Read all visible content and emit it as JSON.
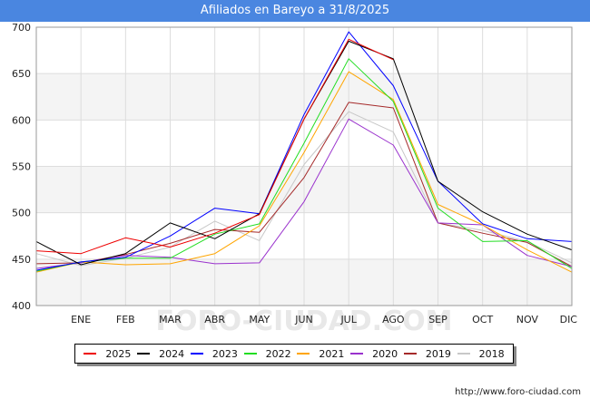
{
  "chart_data": {
    "type": "line",
    "title": "Afiliados en Bareyo a 31/8/2025",
    "categories": [
      "",
      "ENE",
      "FEB",
      "MAR",
      "ABR",
      "MAY",
      "JUN",
      "JUL",
      "AGO",
      "SEP",
      "OCT",
      "NOV",
      "DIC"
    ],
    "y_ticks": [
      400,
      450,
      500,
      550,
      600,
      650,
      700
    ],
    "ylim": [
      400,
      700
    ],
    "grid": true,
    "legend_position": "bottom",
    "watermark": "FORO-CIUDAD.COM",
    "source": "http://www.foro-ciudad.com",
    "series": [
      {
        "name": "2018",
        "color": "#c8c8c8",
        "values": [
          456,
          443,
          451,
          463,
          491,
          470,
          552,
          609,
          587,
          489,
          481,
          469,
          446
        ]
      },
      {
        "name": "2019",
        "color": "#a52a2a",
        "values": [
          445,
          446,
          455,
          467,
          482,
          479,
          538,
          619,
          613,
          489,
          478,
          468,
          442
        ]
      },
      {
        "name": "2020",
        "color": "#9a32cd",
        "values": [
          440,
          446,
          454,
          452,
          445,
          446,
          512,
          601,
          573,
          489,
          487,
          454,
          442
        ]
      },
      {
        "name": "2021",
        "color": "#ffa500",
        "values": [
          436,
          447,
          444,
          445,
          456,
          486,
          565,
          652,
          622,
          509,
          487,
          460,
          436
        ]
      },
      {
        "name": "2022",
        "color": "#22dd22",
        "values": [
          437,
          447,
          451,
          451,
          477,
          488,
          575,
          666,
          620,
          505,
          469,
          470,
          440
        ]
      },
      {
        "name": "2023",
        "color": "#0000ff",
        "values": [
          438,
          447,
          452,
          475,
          505,
          499,
          606,
          695,
          637,
          534,
          488,
          472,
          469
        ]
      },
      {
        "name": "2024",
        "color": "#000000",
        "values": [
          469,
          444,
          456,
          489,
          472,
          499,
          601,
          685,
          666,
          534,
          501,
          477,
          460
        ]
      },
      {
        "name": "2025",
        "color": "#ee0000",
        "values": [
          459,
          456,
          473,
          463,
          478,
          498,
          601,
          687,
          665,
          null,
          null,
          null,
          null
        ]
      }
    ],
    "legend_order": [
      "2025",
      "2024",
      "2023",
      "2022",
      "2021",
      "2020",
      "2019",
      "2018"
    ]
  }
}
